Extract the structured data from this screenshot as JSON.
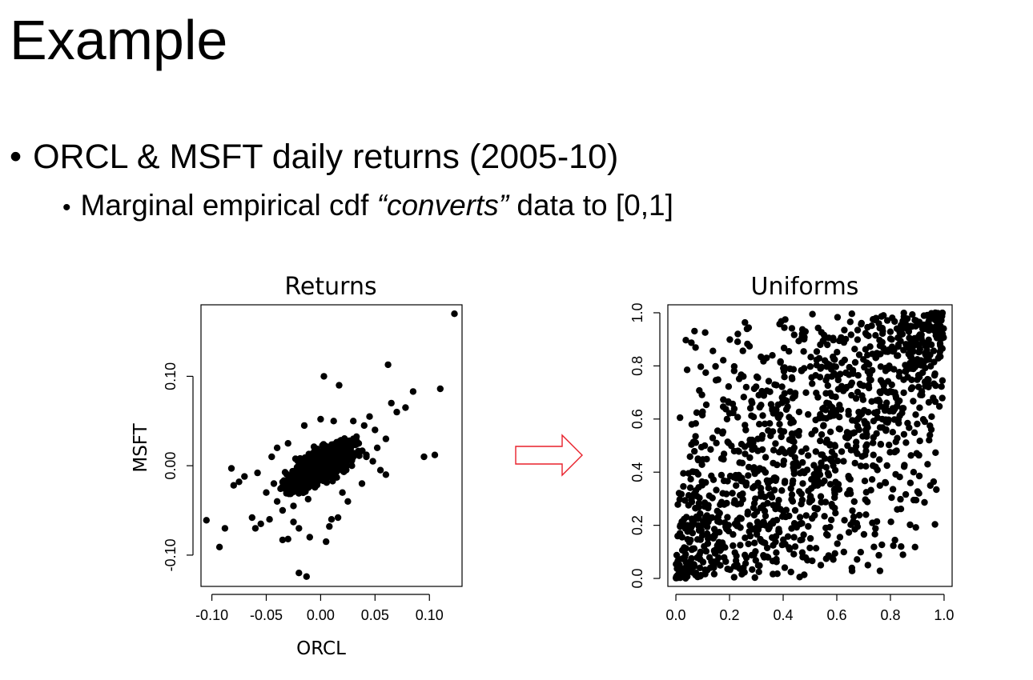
{
  "slide": {
    "title": "Example",
    "bullet1": "ORCL & MSFT daily returns (2005-10)",
    "bullet2_pre": "Marginal empirical cdf ",
    "bullet2_em": "“converts”",
    "bullet2_post": " data to [0,1]",
    "bullet_glyph": "•"
  },
  "arrow": {
    "color": "#e8202a"
  },
  "chart_data": [
    {
      "type": "scatter",
      "title": "Returns",
      "xlabel": "ORCL",
      "ylabel": "MSFT",
      "xlim": [
        -0.11,
        0.13
      ],
      "ylim": [
        -0.135,
        0.18
      ],
      "xticks": [
        "-0.10",
        "-0.05",
        "0.00",
        "0.05",
        "0.10"
      ],
      "xtick_values": [
        -0.1,
        -0.05,
        0.0,
        0.05,
        0.1
      ],
      "yticks": [
        "-0.10",
        "0.00",
        "0.10"
      ],
      "ytick_values": [
        -0.1,
        0.0,
        0.1
      ],
      "point_color": "#000000",
      "points": [
        [
          -0.105,
          -0.061
        ],
        [
          -0.093,
          -0.091
        ],
        [
          -0.088,
          -0.07
        ],
        [
          -0.082,
          -0.003
        ],
        [
          -0.08,
          -0.022
        ],
        [
          -0.075,
          -0.018
        ],
        [
          -0.07,
          -0.012
        ],
        [
          -0.063,
          -0.058
        ],
        [
          -0.06,
          -0.07
        ],
        [
          -0.058,
          -0.008
        ],
        [
          -0.055,
          -0.065
        ],
        [
          -0.05,
          -0.03
        ],
        [
          -0.047,
          -0.06
        ],
        [
          -0.043,
          -0.02
        ],
        [
          -0.04,
          -0.04
        ],
        [
          -0.035,
          -0.083
        ],
        [
          -0.03,
          -0.082
        ],
        [
          -0.025,
          -0.063
        ],
        [
          -0.02,
          -0.12
        ],
        [
          -0.013,
          -0.124
        ],
        [
          -0.02,
          -0.07
        ],
        [
          -0.01,
          -0.08
        ],
        [
          0.005,
          -0.085
        ],
        [
          0.008,
          -0.068
        ],
        [
          0.016,
          -0.058
        ],
        [
          0.02,
          -0.03
        ],
        [
          0.003,
          0.1
        ],
        [
          0.017,
          0.09
        ],
        [
          0.03,
          0.05
        ],
        [
          0.04,
          0.045
        ],
        [
          0.045,
          0.055
        ],
        [
          0.05,
          0.04
        ],
        [
          0.055,
          -0.005
        ],
        [
          0.06,
          -0.01
        ],
        [
          0.062,
          0.113
        ],
        [
          0.065,
          0.07
        ],
        [
          0.07,
          0.06
        ],
        [
          0.078,
          0.065
        ],
        [
          0.085,
          0.083
        ],
        [
          0.095,
          0.01
        ],
        [
          0.105,
          0.012
        ],
        [
          0.11,
          0.086
        ],
        [
          0.123,
          0.17
        ],
        [
          0.06,
          0.03
        ],
        [
          0.052,
          0.02
        ],
        [
          0.048,
          0.005
        ],
        [
          0.042,
          0.01
        ],
        [
          0.038,
          -0.02
        ],
        [
          0.035,
          0.025
        ],
        [
          0.03,
          0.03
        ],
        [
          -0.045,
          0.01
        ],
        [
          -0.04,
          0.02
        ],
        [
          -0.03,
          0.025
        ],
        [
          -0.035,
          -0.05
        ],
        [
          -0.025,
          -0.045
        ],
        [
          0.01,
          -0.06
        ],
        [
          0.025,
          -0.04
        ],
        [
          -0.015,
          0.045
        ],
        [
          0.0,
          0.052
        ],
        [
          0.012,
          0.05
        ]
      ],
      "cluster_note": "dense core of ~1500 daily returns centred at (0.00, 0.00), positively correlated"
    },
    {
      "type": "scatter",
      "title": "Uniforms",
      "xlabel": "",
      "ylabel": "",
      "xlim": [
        -0.03,
        1.03
      ],
      "ylim": [
        -0.03,
        1.03
      ],
      "xticks": [
        "0.0",
        "0.2",
        "0.4",
        "0.6",
        "0.8",
        "1.0"
      ],
      "xtick_values": [
        0.0,
        0.2,
        0.4,
        0.6,
        0.8,
        1.0
      ],
      "yticks": [
        "0.0",
        "0.2",
        "0.4",
        "0.6",
        "0.8",
        "1.0"
      ],
      "ytick_values": [
        0.0,
        0.2,
        0.4,
        0.6,
        0.8,
        1.0
      ],
      "point_color": "#000000",
      "cluster_note": "~1500 pseudo-observations on [0,1]x[0,1], concentrated near (0,0) and (1,1)"
    }
  ]
}
